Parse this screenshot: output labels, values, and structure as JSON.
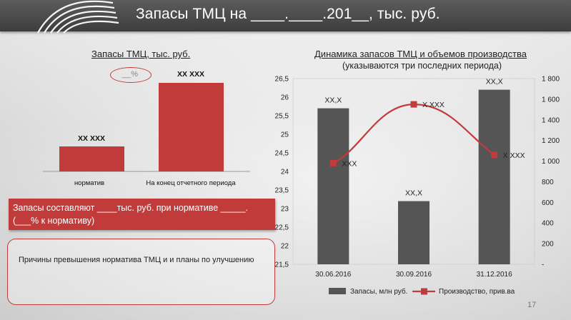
{
  "header": {
    "title": "Запасы  ТМЦ на ____.____.201__, тыс. руб.",
    "colors": {
      "bar": "#4b4b4b",
      "accent": "#c23b3b"
    }
  },
  "left_panel": {
    "subtitle": "Запасы ТМЦ, тыс. руб.",
    "percent_label": "__%",
    "red_box_text": "Запасы составляют ____тыс. руб. при нормативе _____. (___% к нормативу)",
    "note_text": "Причины превышения норматива ТМЦ и и планы по улучшению"
  },
  "right_panel": {
    "subtitle": "Динамика запасов ТМЦ  и объемов производства",
    "subtitle2": "(указываются три последних периода)"
  },
  "page_number": "17",
  "chart_data": [
    {
      "type": "bar",
      "categories": [
        "норматив",
        "На конец отчетного периода"
      ],
      "values": [
        1,
        2
      ],
      "data_labels": [
        "XX XXX",
        "XX XXX"
      ],
      "colors": [
        "#c23b3b",
        "#c23b3b"
      ]
    },
    {
      "type": "bar",
      "categories": [
        "30.06.2016",
        "30.09.2016",
        "31.12.2016"
      ],
      "y_left": {
        "lim": [
          21.5,
          26.5
        ],
        "ticks": [
          "21,5",
          "22",
          "22,5",
          "23",
          "23,5",
          "24",
          "24,5",
          "25",
          "25,5",
          "26",
          "26,5"
        ]
      },
      "y_right": {
        "lim": [
          0,
          1800
        ],
        "ticks": [
          "-",
          "200",
          "400",
          "600",
          "800",
          "1 000",
          "1 200",
          "1 400",
          "1 600",
          "1 800"
        ]
      },
      "series": [
        {
          "name": "Запасы, млн руб.",
          "type": "bar",
          "axis": "left",
          "values": [
            25.7,
            23.2,
            26.2
          ],
          "labels": [
            "XX,X",
            "XX,X",
            "XX,X"
          ],
          "color": "#555555"
        },
        {
          "name": "Производство, прив.ва",
          "type": "line",
          "axis": "right",
          "values": [
            980,
            1550,
            1060
          ],
          "labels": [
            "XXX",
            "X XXX",
            "X XXX"
          ],
          "color": "#c23b3b"
        }
      ],
      "legend_position": "bottom"
    }
  ]
}
